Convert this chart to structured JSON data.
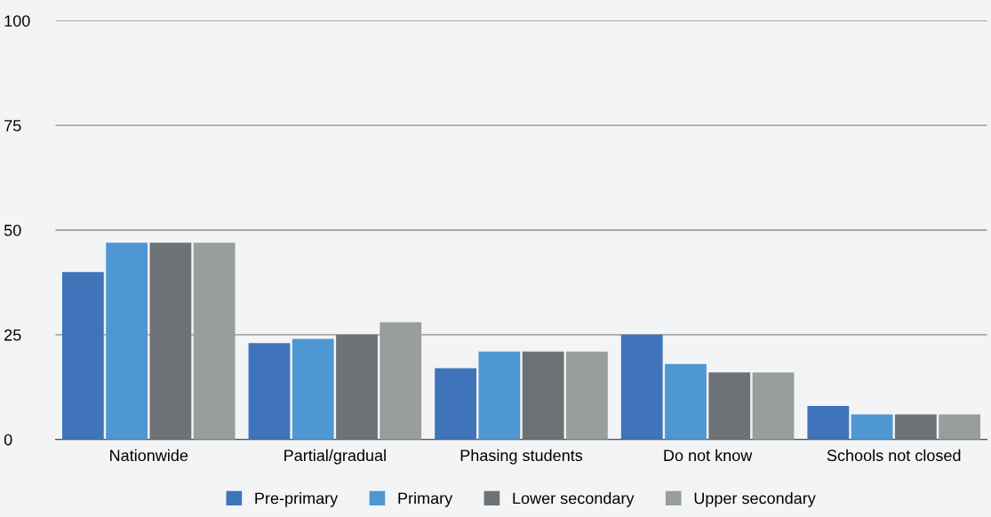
{
  "chart_data": {
    "type": "bar",
    "categories": [
      "Nationwide",
      "Partial/gradual",
      "Phasing students",
      "Do not know",
      "Schools not closed"
    ],
    "series": [
      {
        "name": "Pre-primary",
        "color": "#3f74bb",
        "values": [
          40,
          23,
          17,
          25,
          8
        ]
      },
      {
        "name": "Primary",
        "color": "#4f97d3",
        "values": [
          47,
          24,
          21,
          18,
          6
        ]
      },
      {
        "name": "Lower secondary",
        "color": "#6f7275",
        "values": [
          47,
          25,
          21,
          16,
          6
        ]
      },
      {
        "name": "Upper secondary",
        "color": "#9a9d9e",
        "values": [
          47,
          28,
          21,
          16,
          6
        ]
      }
    ],
    "ylim": [
      0,
      100
    ],
    "yticks": [
      0,
      25,
      50,
      75,
      100
    ],
    "grid": "y",
    "legend": "bottom"
  }
}
